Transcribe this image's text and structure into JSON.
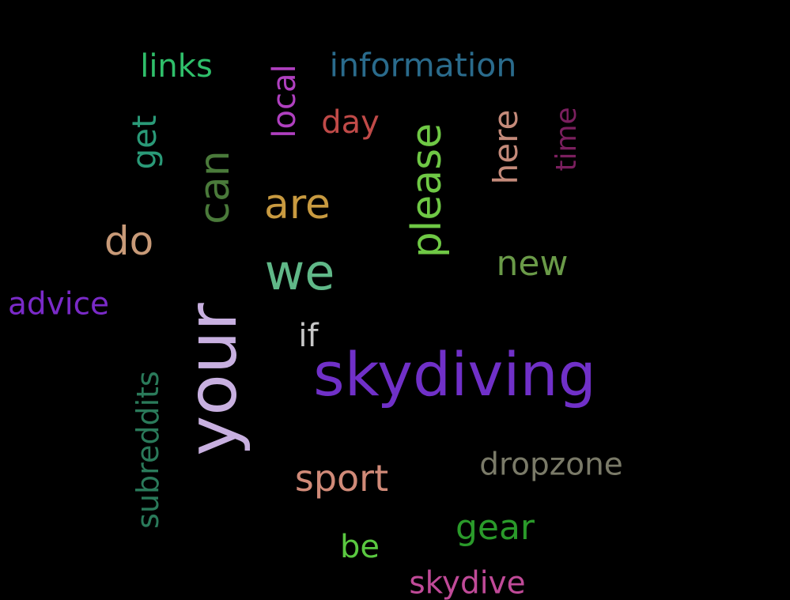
{
  "words": {
    "links": {
      "text": "links",
      "color": "#2fbf6a"
    },
    "information": {
      "text": "information",
      "color": "#2a6b8c"
    },
    "local": {
      "text": "local",
      "color": "#b040c0"
    },
    "day": {
      "text": "day",
      "color": "#c04a48"
    },
    "get": {
      "text": "get",
      "color": "#2a9a78"
    },
    "please": {
      "text": "please",
      "color": "#6fc845"
    },
    "here": {
      "text": "here",
      "color": "#c48a7a"
    },
    "time": {
      "text": "time",
      "color": "#7a1f5e"
    },
    "can": {
      "text": "can",
      "color": "#4a7a3a"
    },
    "are": {
      "text": "are",
      "color": "#c89a40"
    },
    "do": {
      "text": "do",
      "color": "#c89a78"
    },
    "we": {
      "text": "we",
      "color": "#60b888"
    },
    "new": {
      "text": "new",
      "color": "#6a9a48"
    },
    "advice": {
      "text": "advice",
      "color": "#7a2ac8"
    },
    "your": {
      "text": "your",
      "color": "#c8b0e0"
    },
    "if": {
      "text": "if",
      "color": "#c8c8c8"
    },
    "skydiving": {
      "text": "skydiving",
      "color": "#7030c8"
    },
    "subreddits": {
      "text": "subreddits",
      "color": "#2a7a5a"
    },
    "dropzone": {
      "text": "dropzone",
      "color": "#7a7a68"
    },
    "sport": {
      "text": "sport",
      "color": "#d08a78"
    },
    "gear": {
      "text": "gear",
      "color": "#2a9a2a"
    },
    "be": {
      "text": "be",
      "color": "#5ac840"
    },
    "skydive": {
      "text": "skydive",
      "color": "#c04a98"
    }
  }
}
